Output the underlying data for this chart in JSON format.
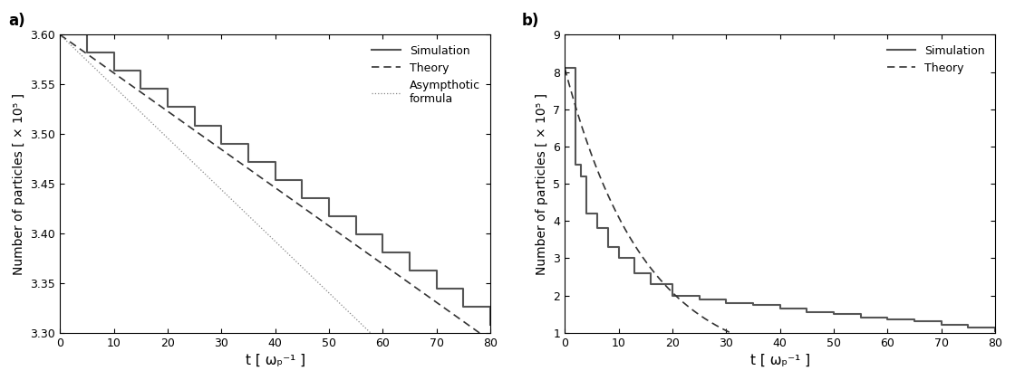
{
  "panel_a": {
    "label": "a)",
    "xlim": [
      0,
      80
    ],
    "ylim": [
      3.3,
      3.6
    ],
    "yticks": [
      3.3,
      3.35,
      3.4,
      3.45,
      3.5,
      3.55,
      3.6
    ],
    "xticks": [
      0,
      10,
      20,
      30,
      40,
      50,
      60,
      70,
      80
    ],
    "ylabel": "Number of particles [ × 10⁵ ]",
    "xlabel": "t [ ωₚ⁻¹ ]",
    "sim_color": "#555555",
    "theory_color": "#333333",
    "asymp_color": "#888888",
    "sim_lw": 1.5,
    "theory_lw": 1.2,
    "asymp_lw": 0.9,
    "legend_entries": [
      "Simulation",
      "Theory",
      "Asympthotic\nformula"
    ],
    "sim_rate": -0.00365,
    "theory_rate": -0.00385,
    "asymp_rate": -0.0052,
    "sim_init": 3.6,
    "theory_init": 3.6,
    "asymp_init": 3.6,
    "step_size": 5
  },
  "panel_b": {
    "label": "b)",
    "xlim": [
      0,
      80
    ],
    "ylim": [
      1,
      9
    ],
    "yticks": [
      1,
      2,
      3,
      4,
      5,
      6,
      7,
      8,
      9
    ],
    "xticks": [
      0,
      10,
      20,
      30,
      40,
      50,
      60,
      70,
      80
    ],
    "ylabel": "Number of particles [ × 10⁵ ]",
    "xlabel": "t [ ωₚ⁻¹ ]",
    "sim_color": "#555555",
    "theory_color": "#333333",
    "sim_lw": 1.5,
    "theory_lw": 1.2,
    "legend_entries": [
      "Simulation",
      "Theory"
    ],
    "decay_rate": 0.068,
    "sim_init": 8.1,
    "theory_init": 8.1,
    "step_size": 3
  },
  "figure_bg": "#ffffff",
  "axes_bg": "#ffffff",
  "tick_color": "#000000",
  "text_color": "#000000"
}
